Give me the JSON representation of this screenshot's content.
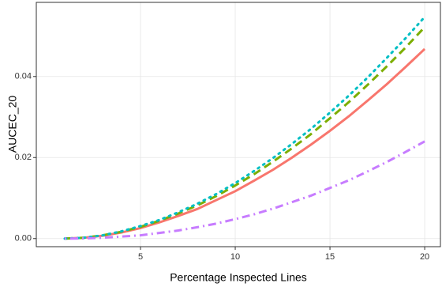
{
  "chart_data": {
    "type": "line",
    "x_label": "Percentage Inspected Lines",
    "y_label": "AUCEC_20",
    "x": [
      1,
      2,
      3,
      4,
      5,
      6,
      7,
      8,
      9,
      10,
      11,
      12,
      13,
      14,
      15,
      16,
      17,
      18,
      19,
      20
    ],
    "series": [
      {
        "color": "#F8766D",
        "dash": "solid",
        "values": [
          0,
          0.0002,
          0.0007,
          0.0015,
          0.0026,
          0.004,
          0.0056,
          0.0073,
          0.0095,
          0.0117,
          0.0143,
          0.017,
          0.02,
          0.0232,
          0.0266,
          0.0302,
          0.0341,
          0.0381,
          0.0424,
          0.0468
        ]
      },
      {
        "color": "#7CAE00",
        "dash": "dashed",
        "values": [
          0,
          0.0002,
          0.0008,
          0.0017,
          0.0029,
          0.0044,
          0.0062,
          0.0082,
          0.0105,
          0.0131,
          0.0159,
          0.019,
          0.0223,
          0.0258,
          0.0297,
          0.0337,
          0.038,
          0.0425,
          0.0472,
          0.0522
        ]
      },
      {
        "color": "#00BFC4",
        "dash": "dotted",
        "values": [
          0,
          0.0002,
          0.0008,
          0.0018,
          0.0031,
          0.0046,
          0.0065,
          0.0086,
          0.011,
          0.0137,
          0.0167,
          0.0199,
          0.0234,
          0.0271,
          0.0311,
          0.0353,
          0.0398,
          0.0446,
          0.0495,
          0.0547
        ]
      },
      {
        "color": "#C77CFF",
        "dash": "dotdash",
        "values": [
          0,
          4e-05,
          0.0002,
          0.0005,
          0.0008,
          0.0014,
          0.002,
          0.0028,
          0.0037,
          0.0048,
          0.006,
          0.0074,
          0.009,
          0.0106,
          0.0125,
          0.0144,
          0.0166,
          0.0189,
          0.0214,
          0.024
        ]
      }
    ],
    "xlim": [
      -0.5,
      20.83
    ],
    "ylim": [
      -0.002,
      0.0583
    ],
    "xticks": [
      5,
      10,
      15,
      20
    ],
    "yticks": [
      {
        "value": 0,
        "label": "0.00"
      },
      {
        "value": 0.02,
        "label": "0.02"
      },
      {
        "value": 0.04,
        "label": "0.04"
      }
    ],
    "grid": true
  }
}
